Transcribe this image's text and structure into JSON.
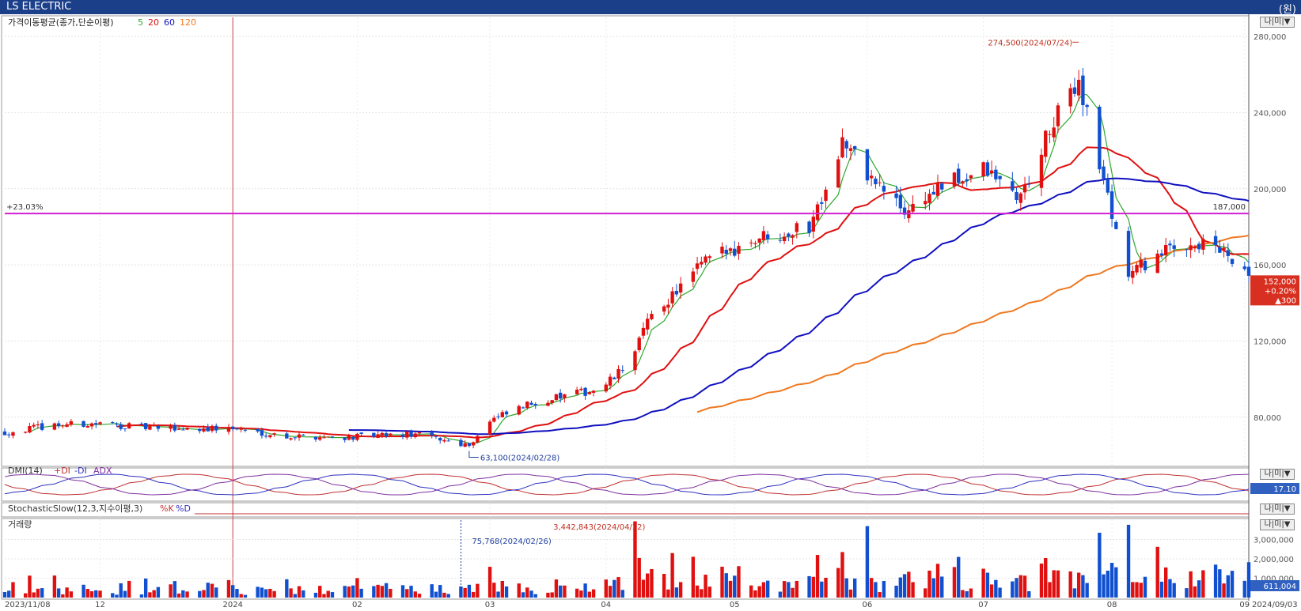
{
  "app": {
    "title": "LS ELECTRIC",
    "unit_label": "(원)"
  },
  "price_panel": {
    "legend_title": "가격이동평균(종가,단순이평)",
    "ma_periods": [
      "5",
      "20",
      "60",
      "120"
    ],
    "ma_colors": [
      "#2ea82e",
      "#e01010",
      "#1010c0",
      "#f07820"
    ],
    "up_color": "#e01010",
    "down_color": "#1050d0",
    "ref_line": {
      "label": "+23.03%",
      "value": 187000,
      "value_label": "187,000",
      "color": "#d020d0"
    },
    "high_annotation": "274,500(2024/07/24)",
    "low_annotation": "63,100(2024/02/28)",
    "last_price": {
      "price": "152,000",
      "change_pct": "+0.20%",
      "change": "▲300"
    },
    "y_ticks": [
      "280,000",
      "240,000",
      "200,000",
      "160,000",
      "120,000",
      "80,000"
    ]
  },
  "dmi_panel": {
    "title": "DMI(14)",
    "plus_di": "+DI",
    "minus_di": "-DI",
    "adx": "ADX",
    "value_label": "17.10"
  },
  "stoch_panel": {
    "title": "StochasticSlow(12,3,지수이평,3)",
    "k": "%K",
    "d": "%D"
  },
  "volume_panel": {
    "title": "거래량",
    "high_annotation": "3,442,843(2024/04/12)",
    "marker_annotation": "75,768(2024/02/26)",
    "last_value": "611,004",
    "y_ticks": [
      "3,000,000",
      "2,000,000",
      "1,000,000"
    ]
  },
  "x_axis": {
    "start_label": "2023/11/08",
    "end_label": "2024/09/03",
    "labels": [
      "12",
      "2024",
      "02",
      "03",
      "04",
      "05",
      "06",
      "07",
      "08",
      "09"
    ]
  },
  "panel_controls": [
    "나|미|▼"
  ],
  "chart_data": {
    "type": "candlestick",
    "title": "LS ELECTRIC",
    "x_range": [
      "2023/11/08",
      "2024/09/03"
    ],
    "price_ylim": [
      55000,
      290000
    ],
    "grid": true,
    "close_anchors": [
      {
        "date": "2023/11/08",
        "close": 72000
      },
      {
        "date": "2023/11/20",
        "close": 76000
      },
      {
        "date": "2023/12/01",
        "close": 76500
      },
      {
        "date": "2023/12/15",
        "close": 74000
      },
      {
        "date": "2024/01/02",
        "close": 74000
      },
      {
        "date": "2024/01/15",
        "close": 70000
      },
      {
        "date": "2024/01/31",
        "close": 69500
      },
      {
        "date": "2024/02/15",
        "close": 71000
      },
      {
        "date": "2024/02/28",
        "close": 65500
      },
      {
        "date": "2024/03/04",
        "close": 78000
      },
      {
        "date": "2024/03/15",
        "close": 88000
      },
      {
        "date": "2024/03/31",
        "close": 95000
      },
      {
        "date": "2024/04/05",
        "close": 105000
      },
      {
        "date": "2024/04/12",
        "close": 133000
      },
      {
        "date": "2024/04/25",
        "close": 162000
      },
      {
        "date": "2024/05/08",
        "close": 175000
      },
      {
        "date": "2024/05/20",
        "close": 180000
      },
      {
        "date": "2024/05/28",
        "close": 225000
      },
      {
        "date": "2024/06/04",
        "close": 205000
      },
      {
        "date": "2024/06/12",
        "close": 188000
      },
      {
        "date": "2024/06/20",
        "close": 200000
      },
      {
        "date": "2024/07/01",
        "close": 210000
      },
      {
        "date": "2024/07/10",
        "close": 195000
      },
      {
        "date": "2024/07/17",
        "close": 230000
      },
      {
        "date": "2024/07/24",
        "close": 258000
      },
      {
        "date": "2024/07/31",
        "close": 195000
      },
      {
        "date": "2024/08/05",
        "close": 155000
      },
      {
        "date": "2024/08/12",
        "close": 165000
      },
      {
        "date": "2024/08/20",
        "close": 172000
      },
      {
        "date": "2024/08/27",
        "close": 168000
      },
      {
        "date": "2024/09/03",
        "close": 152000
      }
    ],
    "ma_series": [
      {
        "name": "5",
        "values": "computed from closes"
      },
      {
        "name": "20",
        "values": "computed from closes"
      },
      {
        "name": "60",
        "values": "computed from closes"
      },
      {
        "name": "120",
        "values": "computed from closes"
      }
    ],
    "volume_ylim": [
      0,
      4000000
    ]
  }
}
